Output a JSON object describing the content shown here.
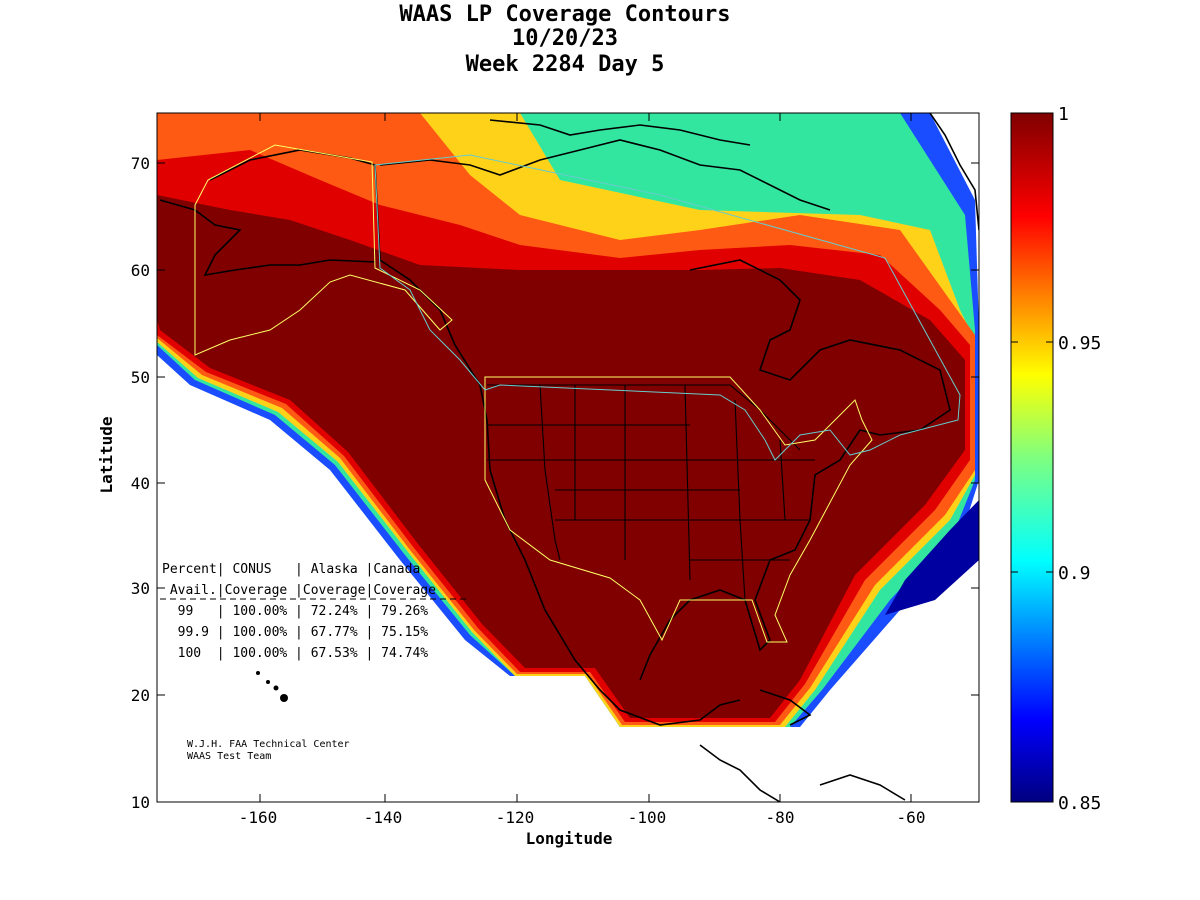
{
  "title": {
    "line1": "WAAS LP Coverage Contours",
    "line2": "10/20/23",
    "line3": "Week 2284 Day 5"
  },
  "axes": {
    "xlabel": "Longitude",
    "ylabel": "Latitude",
    "x_ticks": [
      "-160",
      "-140",
      "-120",
      "-100",
      "-80",
      "-60"
    ],
    "y_ticks": [
      "10",
      "20",
      "30",
      "40",
      "50",
      "60",
      "70"
    ],
    "x_range": [
      -175,
      -50
    ],
    "y_range": [
      10,
      75
    ]
  },
  "colorbar": {
    "range": [
      0.85,
      1.0
    ],
    "tick_labels": [
      "1",
      "0.95",
      "0.9",
      "0.85"
    ],
    "colormap": "jet"
  },
  "coverage_table": {
    "header1": "Percent| CONUS   | Alaska |Canada",
    "header2": " Avail.|Coverage |Coverage|Coverage",
    "rows": [
      "  99   | 100.00% | 72.24% | 79.26%",
      "  99.9 | 100.00% | 67.77% | 75.15%",
      "  100  | 100.00% | 67.53% | 74.74%"
    ]
  },
  "credit": {
    "line1": "W.J.H. FAA Technical Center",
    "line2": "WAAS Test Team"
  },
  "colors": {
    "full_coverage": "#800000",
    "boundary_yellow": "#ffff66",
    "boundary_cyan": "#66cccc"
  }
}
